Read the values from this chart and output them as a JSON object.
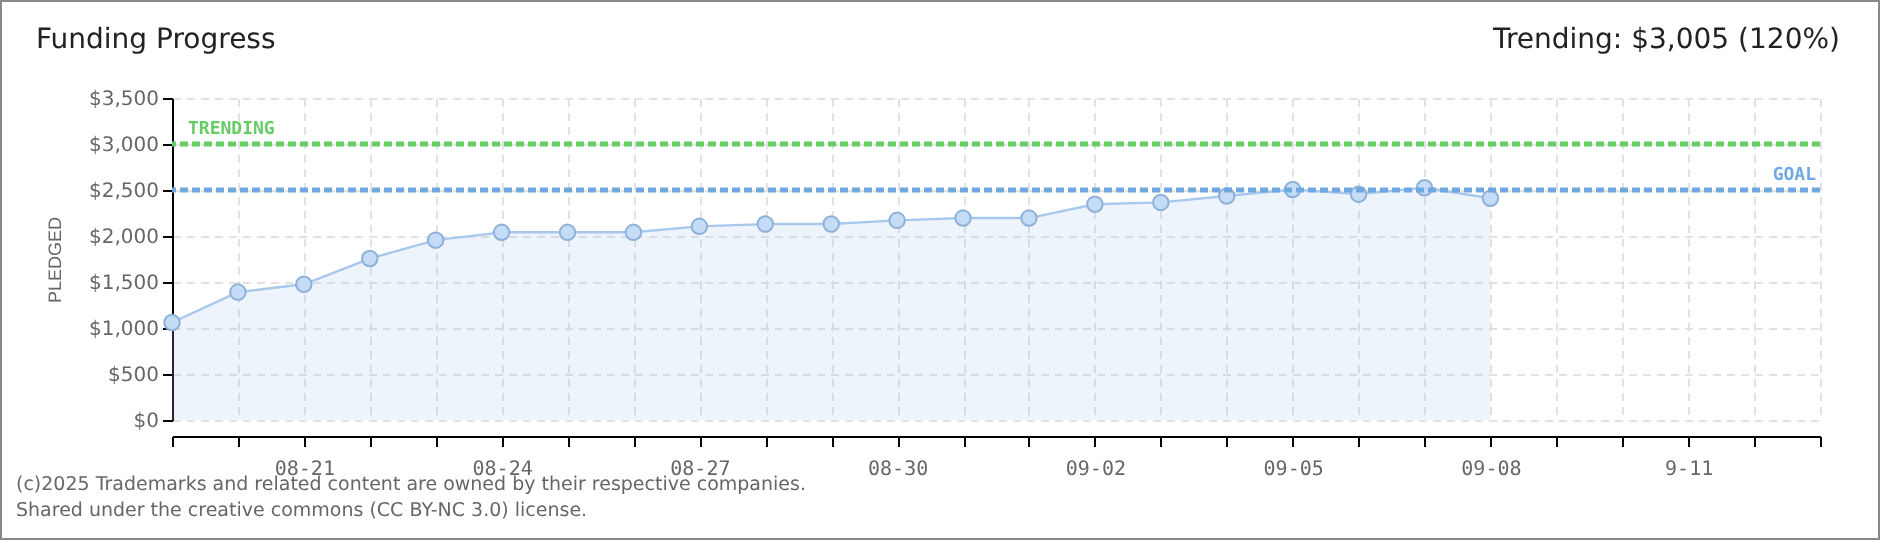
{
  "chart_data": {
    "type": "area",
    "title": "Funding Progress",
    "ylabel": "PLEDGED",
    "annotations": [
      "Trending: $3,005 (120%)",
      "(c)2025 Trademarks and related content are owned by their respective companies.",
      "Shared under the creative commons (CC BY-NC 3.0) license."
    ],
    "x": [
      "--08-19",
      "--08-20",
      "--08-21",
      "--08-22",
      "--08-23",
      "--08-24",
      "--08-25",
      "--08-26",
      "--08-27",
      "--08-28",
      "--08-29",
      "--08-30",
      "--08-31",
      "--09-01",
      "--09-02",
      "--09-03",
      "--09-04",
      "--09-05",
      "--09-06",
      "--09-07",
      "--09-08"
    ],
    "series": [
      {
        "color": "#a9c8ee",
        "values": [
          1060,
          1390,
          1475,
          1755,
          1955,
          2040,
          2040,
          2040,
          2105,
          2130,
          2130,
          2170,
          2195,
          2195,
          2345,
          2365,
          2435,
          2505,
          2455,
          2525,
          2410
        ]
      }
    ],
    "marker": "circle",
    "xlim": [
      "--08-19",
      "--09-13"
    ],
    "xticks": [
      {
        "value": "--08-19",
        "label": null
      },
      {
        "value": "--08-20",
        "label": null
      },
      {
        "value": "--08-21",
        "label": "08-21"
      },
      {
        "value": "--08-22",
        "label": null
      },
      {
        "value": "--08-23",
        "label": null
      },
      {
        "value": "--08-24",
        "label": "08-24"
      },
      {
        "value": "--08-25",
        "label": null
      },
      {
        "value": "--08-26",
        "label": null
      },
      {
        "value": "--08-27",
        "label": "08-27"
      },
      {
        "value": "--08-28",
        "label": null
      },
      {
        "value": "--08-29",
        "label": null
      },
      {
        "value": "--08-30",
        "label": "08-30"
      },
      {
        "value": "--08-31",
        "label": null
      },
      {
        "value": "--09-01",
        "label": null
      },
      {
        "value": "--09-02",
        "label": "09-02"
      },
      {
        "value": "--09-03",
        "label": null
      },
      {
        "value": "--09-04",
        "label": null
      },
      {
        "value": "--09-05",
        "label": "09-05"
      },
      {
        "value": "--09-06",
        "label": null
      },
      {
        "value": "--09-07",
        "label": null
      },
      {
        "value": "--09-08",
        "label": "09-08"
      },
      {
        "value": "--09-09",
        "label": null
      },
      {
        "value": "--09-10",
        "label": null
      },
      {
        "value": "--09-11",
        "label": "9-11"
      },
      {
        "value": "--09-12",
        "label": null
      },
      {
        "value": "--09-13",
        "label": null
      }
    ],
    "ylim": [
      0,
      3500
    ],
    "yticks": [
      {
        "value": 0,
        "label": "$0"
      },
      {
        "value": 500,
        "label": "$500"
      },
      {
        "value": 1000,
        "label": "$1,000"
      },
      {
        "value": 1500,
        "label": "$1,500"
      },
      {
        "value": 2000,
        "label": "$2,000"
      },
      {
        "value": 2500,
        "label": "$2,500"
      },
      {
        "value": 3000,
        "label": "$3,000"
      },
      {
        "value": 3500,
        "label": "$3,500"
      }
    ],
    "grid": true,
    "ref_lines": [
      {
        "axis": "y",
        "value": 3000,
        "label": "TRENDING",
        "color": "#66cc66",
        "line_style": "dashed"
      },
      {
        "axis": "y",
        "value": 2500,
        "label": "GOAL",
        "color": "#6fa8e0",
        "line_style": "dashed"
      }
    ]
  }
}
